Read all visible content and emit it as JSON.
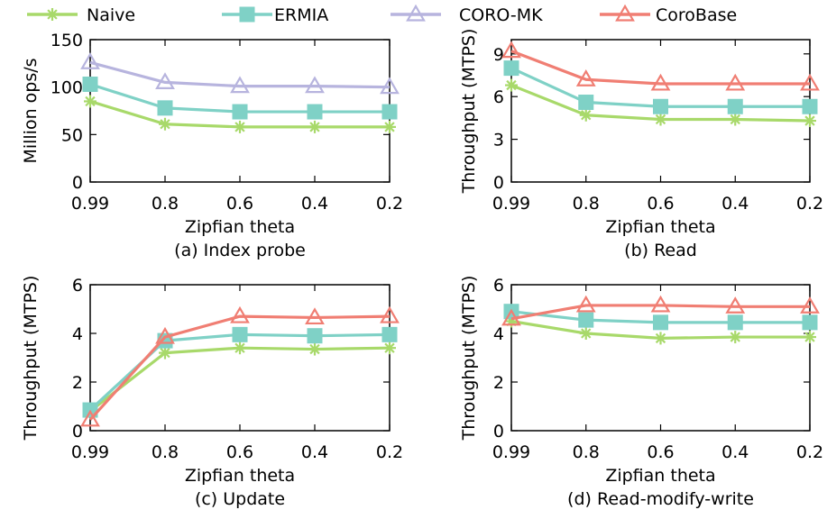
{
  "legend": [
    {
      "name": "Naive",
      "color": "#a8d96a",
      "marker": "asterisk"
    },
    {
      "name": "ERMIA",
      "color": "#7fd1c6",
      "marker": "square"
    },
    {
      "name": "CORO-MK",
      "color": "#b7b4de",
      "marker": "triangle-open"
    },
    {
      "name": "CoroBase",
      "color": "#f07e73",
      "marker": "triangle-open"
    }
  ],
  "chart_data": [
    {
      "type": "line",
      "caption": "(a) Index probe",
      "xlabel": "Zipfian theta",
      "ylabel": "Million ops/s",
      "x": [
        "0.99",
        "0.8",
        "0.6",
        "0.4",
        "0.2"
      ],
      "ylim": [
        0,
        150
      ],
      "yticks": [
        "0",
        "50",
        "100",
        "150"
      ],
      "grid": false,
      "series": [
        {
          "name": "Naive",
          "values": [
            85,
            61,
            58,
            58,
            58
          ]
        },
        {
          "name": "ERMIA",
          "values": [
            103,
            78,
            74,
            74,
            74
          ]
        },
        {
          "name": "CORO-MK",
          "values": [
            126,
            105,
            101,
            101,
            100
          ]
        }
      ]
    },
    {
      "type": "line",
      "caption": "(b) Read",
      "xlabel": "Zipfian theta",
      "ylabel": "Throughput (MTPS)",
      "x": [
        "0.99",
        "0.8",
        "0.6",
        "0.4",
        "0.2"
      ],
      "ylim": [
        0,
        10
      ],
      "yticks": [
        "0",
        "3",
        "6",
        "9"
      ],
      "grid": false,
      "series": [
        {
          "name": "Naive",
          "values": [
            6.8,
            4.7,
            4.4,
            4.4,
            4.3
          ]
        },
        {
          "name": "ERMIA",
          "values": [
            8.0,
            5.6,
            5.3,
            5.3,
            5.3
          ]
        },
        {
          "name": "CoroBase",
          "values": [
            9.2,
            7.2,
            6.9,
            6.9,
            6.9
          ]
        }
      ]
    },
    {
      "type": "line",
      "caption": "(c) Update",
      "xlabel": "Zipfian theta",
      "ylabel": "Throughput (MTPS)",
      "x": [
        "0.99",
        "0.8",
        "0.6",
        "0.4",
        "0.2"
      ],
      "ylim": [
        0,
        6
      ],
      "yticks": [
        "0",
        "2",
        "4",
        "6"
      ],
      "grid": false,
      "series": [
        {
          "name": "Naive",
          "values": [
            0.8,
            3.2,
            3.4,
            3.35,
            3.4
          ]
        },
        {
          "name": "ERMIA",
          "values": [
            0.85,
            3.7,
            3.95,
            3.9,
            3.95
          ]
        },
        {
          "name": "CoroBase",
          "values": [
            0.45,
            3.85,
            4.7,
            4.65,
            4.7
          ]
        }
      ]
    },
    {
      "type": "line",
      "caption": "(d) Read-modify-write",
      "xlabel": "Zipfian theta",
      "ylabel": "Throughput (MTPS)",
      "x": [
        "0.99",
        "0.8",
        "0.6",
        "0.4",
        "0.2"
      ],
      "ylim": [
        0,
        6
      ],
      "yticks": [
        "0",
        "2",
        "4",
        "6"
      ],
      "grid": false,
      "series": [
        {
          "name": "Naive",
          "values": [
            4.5,
            4.0,
            3.8,
            3.85,
            3.85
          ]
        },
        {
          "name": "ERMIA",
          "values": [
            4.9,
            4.55,
            4.45,
            4.45,
            4.45
          ]
        },
        {
          "name": "CoroBase",
          "values": [
            4.6,
            5.15,
            5.15,
            5.1,
            5.1
          ]
        }
      ]
    }
  ]
}
